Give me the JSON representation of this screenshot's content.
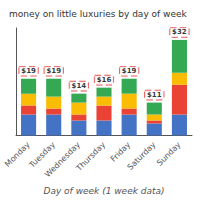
{
  "chart_data": {
    "type": "bar",
    "stacked": true,
    "title": "money on little luxuries by day of week",
    "xlabel": "Day of week (1 week data)",
    "categories": [
      "Monday",
      "Tuesday",
      "Wednesday",
      "Thursday",
      "Friday",
      "Saturday",
      "Sunday"
    ],
    "series": [
      {
        "color": "#4472C4",
        "values": [
          7,
          7,
          5,
          5,
          7,
          4,
          7
        ]
      },
      {
        "color": "#EA4335",
        "values": [
          3,
          2,
          2,
          5,
          2,
          1,
          10
        ]
      },
      {
        "color": "#FBBC04",
        "values": [
          4,
          4,
          4,
          3,
          5,
          2,
          4
        ]
      },
      {
        "color": "#34A853",
        "values": [
          5,
          6,
          3,
          3,
          5,
          4,
          11
        ]
      }
    ],
    "totals": {
      "values": [
        19,
        19,
        14,
        16,
        19,
        11,
        32
      ],
      "value_labels": [
        "$19",
        "$19",
        "$14",
        "$16",
        "$19",
        "$11",
        "$32"
      ],
      "color": "#DD2222"
    },
    "ylim": [
      0,
      36
    ],
    "tick_labels": "x",
    "grid": false
  }
}
